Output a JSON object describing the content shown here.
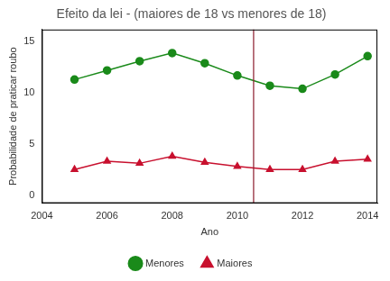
{
  "chart_data": {
    "type": "line",
    "title": "Efeito da lei - (maiores de 18 vs menores de 18)",
    "x_label": "Ano",
    "y_label": "Probabilidade de praticar roubo",
    "x": [
      2005,
      2006,
      2007,
      2008,
      2009,
      2010,
      2011,
      2012,
      2013,
      2014
    ],
    "series": [
      {
        "name": "Menores",
        "color": "#1a8a1a",
        "marker": "circle",
        "values": [
          11.3,
          12.2,
          13.1,
          13.9,
          12.9,
          11.7,
          10.7,
          10.4,
          11.8,
          13.6
        ]
      },
      {
        "name": "Maiores",
        "color": "#c8102e",
        "marker": "triangle",
        "values": [
          2.5,
          3.3,
          3.1,
          3.8,
          3.2,
          2.8,
          2.5,
          2.5,
          3.3,
          3.5
        ]
      }
    ],
    "xlim": [
      2004,
      2014.3
    ],
    "xticks": [
      2004,
      2006,
      2008,
      2010,
      2012,
      2014
    ],
    "ylim": [
      -0.8,
      16.2
    ],
    "yticks": [
      0,
      5,
      10,
      15
    ],
    "annotations": [
      {
        "type": "vline",
        "x": 2010.5,
        "color": "#8b1a2b"
      }
    ],
    "legend": "bottom",
    "grid": false
  }
}
